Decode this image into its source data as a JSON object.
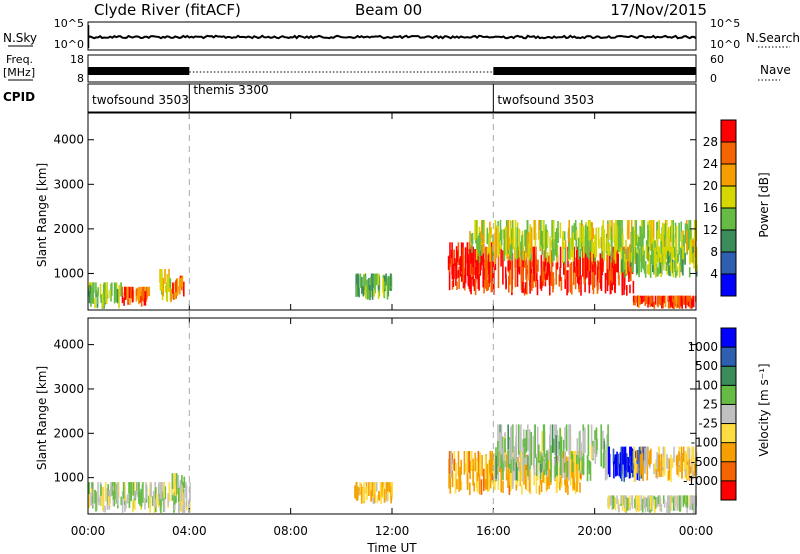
{
  "header": {
    "station": "Clyde River (fitACF)",
    "beam": "Beam 00",
    "date": "17/Nov/2015"
  },
  "status_panels": {
    "nsky_label": "N.Sky",
    "nsky_ticks": [
      "10^5",
      "10^0"
    ],
    "nsearch_label": "N.Search",
    "nsearch_ticks": [
      "10^5",
      "10^0"
    ],
    "freq_label_1": "Freq.",
    "freq_label_2": "[MHz]",
    "freq_ticks": [
      "18",
      "8"
    ],
    "nave_label": "Nave",
    "nave_ticks": [
      "60",
      "0"
    ],
    "cpid_label": "CPID",
    "cpid_segments": [
      {
        "name": "twofsound 3503",
        "start_h": 0,
        "end_h": 4.0
      },
      {
        "name": "themis 3300",
        "start_h": 4.0,
        "end_h": 16.0
      },
      {
        "name": "twofsound 3503",
        "start_h": 16.0,
        "end_h": 24.0
      }
    ]
  },
  "axes": {
    "time_ticks": [
      "00:00",
      "04:00",
      "08:00",
      "12:00",
      "16:00",
      "20:00",
      "00:00"
    ],
    "time_label": "Time UT",
    "range_ticks": [
      "1000",
      "2000",
      "3000",
      "4000"
    ],
    "range_label": "Slant Range [km]"
  },
  "colorbars": {
    "power_label": "Power [dB]",
    "power_ticks": [
      "4",
      "8",
      "12",
      "16",
      "20",
      "24",
      "28"
    ],
    "velocity_label": "Velocity [m s⁻¹]",
    "velocity_ticks": [
      "1000",
      "500",
      "100",
      "25",
      "-25",
      "-100",
      "-500",
      "-1000"
    ]
  },
  "chart_data": [
    {
      "type": "heatmap",
      "title": "Power",
      "xlabel": "Time UT",
      "ylabel": "Slant Range [km]",
      "xlim": [
        0,
        24
      ],
      "ylim": [
        180,
        4600
      ],
      "color_scale": {
        "label": "Power [dB]",
        "min": 0,
        "max": 30,
        "colors": [
          "#0000ff",
          "#2f5fb0",
          "#3c8c5a",
          "#66bb44",
          "#d6d600",
          "#f5a000",
          "#f46400",
          "#ff0000"
        ]
      },
      "regions": [
        {
          "t": [
            0.0,
            1.3
          ],
          "r": [
            200,
            800
          ],
          "power": 14
        },
        {
          "t": [
            1.3,
            2.4
          ],
          "r": [
            250,
            700
          ],
          "power": 24
        },
        {
          "t": [
            2.8,
            3.3
          ],
          "r": [
            350,
            1100
          ],
          "power": 18
        },
        {
          "t": [
            3.3,
            3.8
          ],
          "r": [
            400,
            950
          ],
          "power": 24
        },
        {
          "t": [
            10.5,
            12.0
          ],
          "r": [
            400,
            1000
          ],
          "power": 12
        },
        {
          "t": [
            14.2,
            16.0
          ],
          "r": [
            600,
            1700
          ],
          "power": 28
        },
        {
          "t": [
            15.0,
            21.5
          ],
          "r": [
            500,
            1600
          ],
          "power": 27
        },
        {
          "t": [
            15.0,
            24.0
          ],
          "r": [
            1200,
            2200
          ],
          "power": 16
        },
        {
          "t": [
            21.0,
            24.0
          ],
          "r": [
            900,
            1600
          ],
          "power": 14
        },
        {
          "t": [
            21.5,
            24.0
          ],
          "r": [
            200,
            500
          ],
          "power": 26
        }
      ]
    },
    {
      "type": "heatmap",
      "title": "Velocity",
      "xlabel": "Time UT",
      "ylabel": "Slant Range [km]",
      "xlim": [
        0,
        24
      ],
      "ylim": [
        180,
        4600
      ],
      "color_scale": {
        "label": "Velocity [m s⁻¹]",
        "min": -1000,
        "max": 1000,
        "colors": [
          "#ff0000",
          "#f46400",
          "#f5a000",
          "#ffdd40",
          "#c0c0c0",
          "#66bb44",
          "#3c8c5a",
          "#2f5fb0",
          "#0000ff"
        ]
      },
      "regions": [
        {
          "t": [
            0.0,
            4.0
          ],
          "r": [
            200,
            900
          ],
          "velocity": 20
        },
        {
          "t": [
            3.3,
            3.8
          ],
          "r": [
            300,
            1100
          ],
          "velocity": 0
        },
        {
          "t": [
            10.5,
            12.0
          ],
          "r": [
            400,
            900
          ],
          "velocity": -300
        },
        {
          "t": [
            14.2,
            19.5
          ],
          "r": [
            600,
            1600
          ],
          "velocity": -350
        },
        {
          "t": [
            16.0,
            20.5
          ],
          "r": [
            900,
            2200
          ],
          "velocity": 120
        },
        {
          "t": [
            20.5,
            22.0
          ],
          "r": [
            900,
            1700
          ],
          "velocity": 800
        },
        {
          "t": [
            20.5,
            24.0
          ],
          "r": [
            200,
            600
          ],
          "velocity": 10
        },
        {
          "t": [
            21.5,
            24.0
          ],
          "r": [
            900,
            1700
          ],
          "velocity": -250
        }
      ]
    }
  ]
}
